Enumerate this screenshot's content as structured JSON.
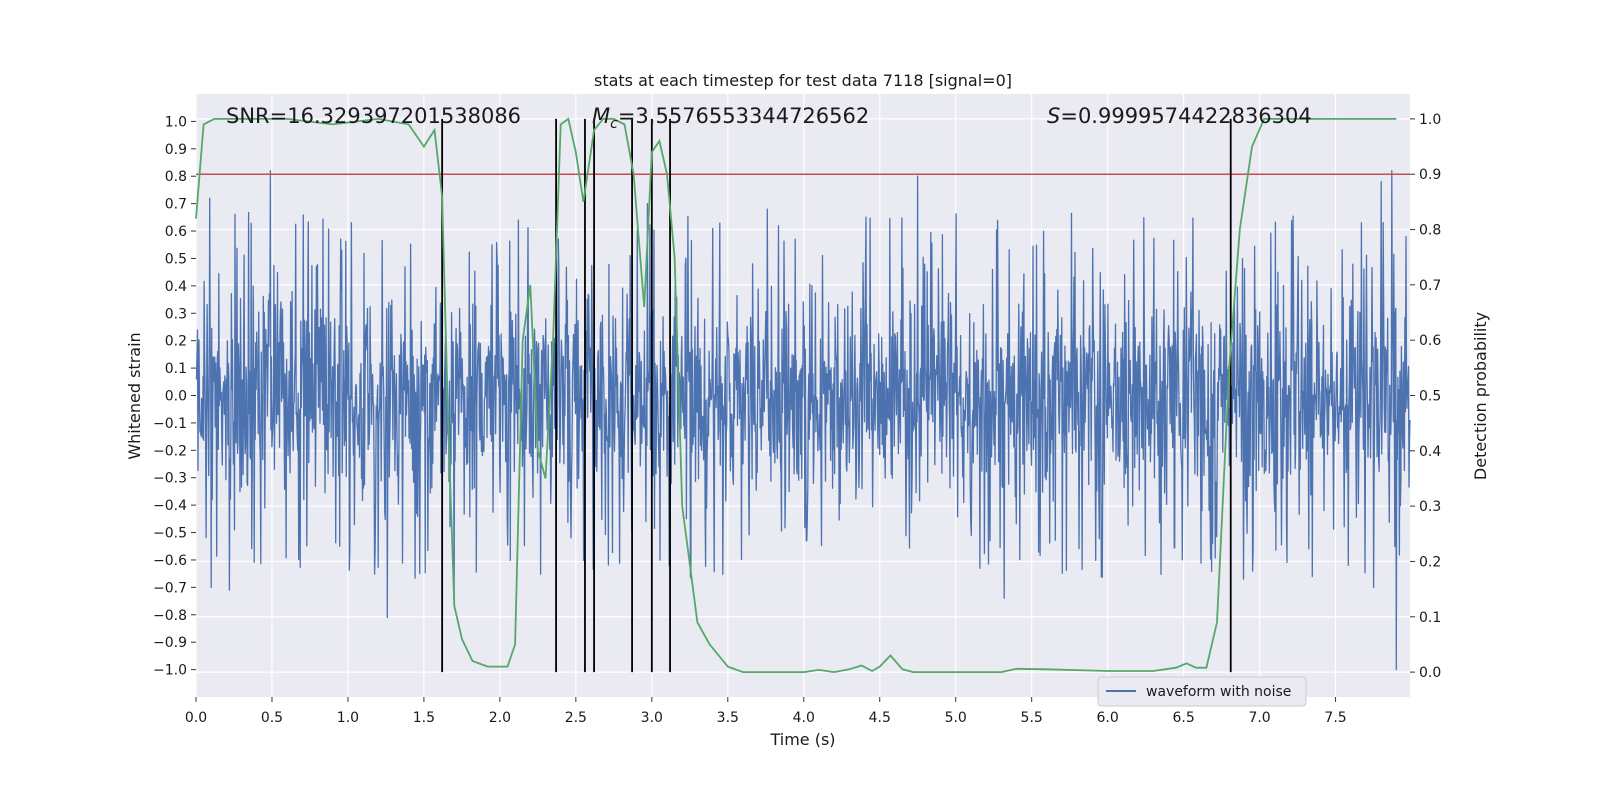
{
  "chart_data": {
    "type": "line",
    "title": "stats at each timestep for test data 7118 [signal=0]",
    "xlabel": "Time (s)",
    "ylabel_left": "Whitened strain",
    "ylabel_right": "Detection probability",
    "xlim": [
      0.0,
      7.99
    ],
    "ylim_left": [
      -1.1,
      1.1
    ],
    "ylim_right": [
      -0.045,
      1.045
    ],
    "x_ticks": [
      "0.0",
      "0.5",
      "1.0",
      "1.5",
      "2.0",
      "2.5",
      "3.0",
      "3.5",
      "4.0",
      "4.5",
      "5.0",
      "5.5",
      "6.0",
      "6.5",
      "7.0",
      "7.5"
    ],
    "y_ticks_left": [
      "1.0",
      "0.9",
      "0.8",
      "0.7",
      "0.6",
      "0.5",
      "0.4",
      "0.3",
      "0.2",
      "0.1",
      "0.0",
      "−0.1",
      "−0.2",
      "−0.3",
      "−0.4",
      "−0.5",
      "−0.6",
      "−0.7",
      "−0.8",
      "−0.9",
      "−1.0"
    ],
    "y_ticks_right": [
      "1.0",
      "0.9",
      "0.8",
      "0.7",
      "0.6",
      "0.5",
      "0.4",
      "0.3",
      "0.2",
      "0.1",
      "0.0"
    ],
    "grid": true,
    "legend_position": "bottom-right",
    "annotations": {
      "snr": "SNR=16.329397201538086",
      "mc_prefix": "M",
      "mc_sub": "c",
      "mc_value": "=3.5576553344726562",
      "s_prefix": "S",
      "s_value": "=0.9999574422836304"
    },
    "series": [
      {
        "name": "waveform with noise",
        "axis": "left",
        "color": "#4c72b0",
        "description_values": "dense noise band, bulk within about ±0.4, peaks to about 0.82 and -1.0",
        "band_typical": 0.3,
        "band_max": 0.82,
        "band_min": -1.0,
        "peaks": [
          {
            "x": 0.09,
            "y": 0.72
          },
          {
            "x": 0.1,
            "y": -0.7
          },
          {
            "x": 0.22,
            "y": -0.71
          },
          {
            "x": 0.49,
            "y": 0.82
          },
          {
            "x": 1.26,
            "y": -0.81
          },
          {
            "x": 1.7,
            "y": -0.76
          },
          {
            "x": 2.12,
            "y": 0.64
          },
          {
            "x": 2.97,
            "y": 0.7
          },
          {
            "x": 4.75,
            "y": 0.8
          },
          {
            "x": 5.32,
            "y": -0.74
          },
          {
            "x": 7.87,
            "y": 0.82
          },
          {
            "x": 7.9,
            "y": -1.0
          },
          {
            "x": 7.8,
            "y": 0.78
          },
          {
            "x": 7.75,
            "y": -0.7
          }
        ]
      },
      {
        "axis": "right",
        "color": "#55a868",
        "x": [
          0.0,
          0.05,
          0.12,
          0.3,
          0.6,
          0.9,
          1.2,
          1.4,
          1.5,
          1.57,
          1.62,
          1.66,
          1.7,
          1.75,
          1.82,
          1.92,
          2.0,
          2.05,
          2.1,
          2.15,
          2.2,
          2.25,
          2.3,
          2.35,
          2.4,
          2.45,
          2.5,
          2.55,
          2.62,
          2.68,
          2.75,
          2.82,
          2.88,
          2.95,
          3.0,
          3.05,
          3.1,
          3.15,
          3.2,
          3.3,
          3.38,
          3.5,
          3.6,
          4.0,
          4.1,
          4.2,
          4.3,
          4.38,
          4.45,
          4.5,
          4.57,
          4.65,
          4.72,
          5.0,
          5.3,
          5.4,
          5.6,
          6.0,
          6.3,
          6.45,
          6.52,
          6.58,
          6.65,
          6.72,
          6.8,
          6.87,
          6.95,
          7.03,
          7.3,
          7.6,
          7.9
        ],
        "values": [
          0.82,
          0.99,
          1.0,
          1.0,
          1.0,
          0.99,
          1.0,
          0.99,
          0.95,
          0.98,
          0.86,
          0.45,
          0.12,
          0.06,
          0.02,
          0.01,
          0.01,
          0.01,
          0.05,
          0.6,
          0.7,
          0.4,
          0.35,
          0.6,
          0.99,
          1.0,
          0.94,
          0.85,
          0.98,
          1.0,
          1.0,
          0.99,
          0.9,
          0.66,
          0.94,
          0.96,
          0.9,
          0.75,
          0.3,
          0.09,
          0.05,
          0.01,
          0.0,
          0.0,
          0.004,
          0.0,
          0.005,
          0.012,
          0.002,
          0.01,
          0.03,
          0.005,
          0.0,
          0.0,
          0.0,
          0.006,
          0.005,
          0.002,
          0.002,
          0.008,
          0.016,
          0.008,
          0.008,
          0.09,
          0.55,
          0.8,
          0.95,
          1.0,
          1.0,
          1.0,
          1.0
        ]
      }
    ],
    "threshold": {
      "axis": "right",
      "value": 0.9,
      "color": "#c44e52"
    },
    "event_lines_x": [
      1.62,
      2.37,
      2.56,
      2.62,
      2.87,
      3.0,
      3.12,
      6.81
    ]
  }
}
